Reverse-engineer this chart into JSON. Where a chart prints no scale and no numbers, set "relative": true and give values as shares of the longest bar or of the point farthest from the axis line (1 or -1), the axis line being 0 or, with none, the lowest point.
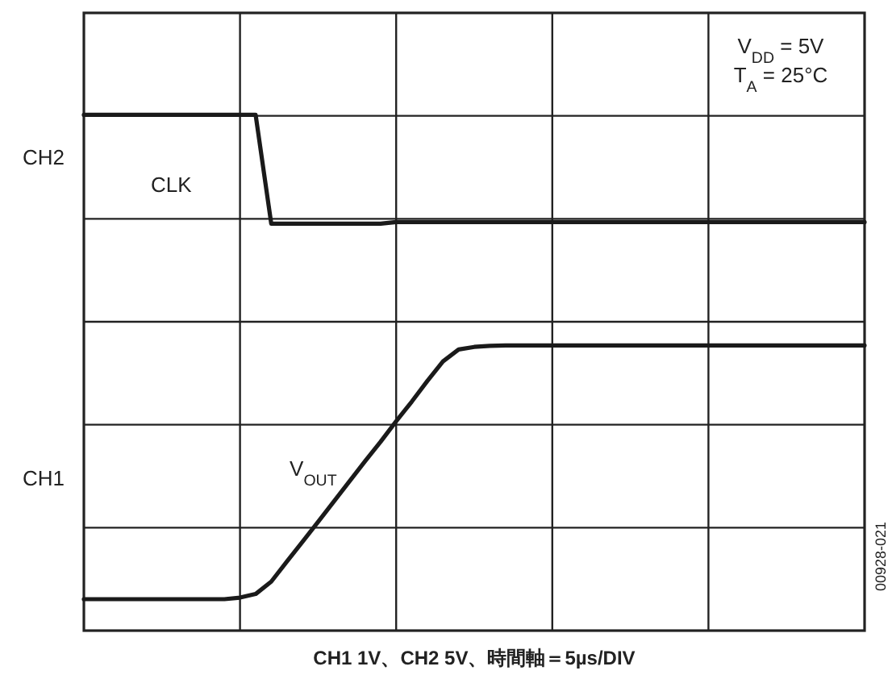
{
  "chart_data": {
    "type": "line",
    "relative": true,
    "xlabel": "CH1 1V、CH2 5V、時間軸＝5µs/DIV",
    "categories": [
      null,
      null,
      null,
      null,
      null,
      null,
      null,
      null,
      null,
      null,
      null,
      null,
      null,
      null,
      null,
      null,
      null,
      null,
      null,
      null,
      null,
      null,
      null,
      null,
      null,
      null,
      null,
      null,
      null,
      null,
      null,
      null,
      null,
      null,
      null,
      null,
      null,
      null,
      null,
      null,
      null,
      null,
      null,
      null,
      null,
      null,
      null,
      null,
      null,
      null,
      null
    ],
    "grid": true,
    "line_style": "solid",
    "series": [
      {
        "name": "CLK",
        "color": "#1a1a1a",
        "values": [
          1,
          1,
          1,
          1,
          1,
          1,
          1,
          1,
          1,
          1,
          1,
          1,
          0.789,
          0.789,
          0.789,
          0.789,
          0.789,
          0.789,
          0.789,
          0.789,
          0.792,
          0.792,
          0.792,
          0.792,
          0.792,
          0.792,
          0.792,
          0.792,
          0.792,
          0.792,
          0.792,
          0.792,
          0.792,
          0.792,
          0.792,
          0.792,
          0.792,
          0.792,
          0.792,
          0.792,
          0.792,
          0.792,
          0.792,
          0.792,
          0.792,
          0.792,
          0.792,
          0.792,
          0.792,
          0.792,
          0.792
        ]
      },
      {
        "name": "V$_{OUT}$",
        "color": "#1a1a1a",
        "values": [
          0.061,
          0.061,
          0.061,
          0.061,
          0.061,
          0.061,
          0.061,
          0.061,
          0.061,
          0.061,
          0.064,
          0.071,
          0.095,
          0.134,
          0.172,
          0.211,
          0.25,
          0.289,
          0.328,
          0.366,
          0.406,
          0.444,
          0.484,
          0.522,
          0.545,
          0.55,
          0.552,
          0.553,
          0.553,
          0.553,
          0.553,
          0.553,
          0.553,
          0.553,
          0.553,
          0.553,
          0.553,
          0.553,
          0.553,
          0.553,
          0.553,
          0.553,
          0.553,
          0.553,
          0.553,
          0.553,
          0.553,
          0.553,
          0.553,
          0.553,
          0.553
        ]
      }
    ],
    "annotations": [
      "CH2",
      "CH1",
      "V$_{DD}$ = 5V",
      "T$_{A}$ = 25°C",
      "00928-021"
    ]
  }
}
